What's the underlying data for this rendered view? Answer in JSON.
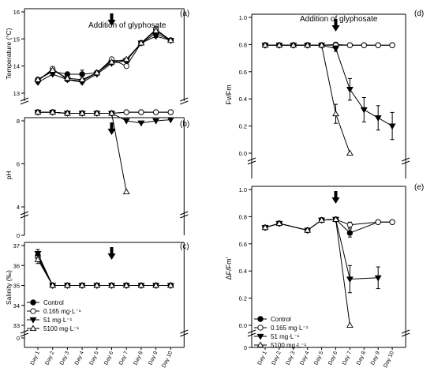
{
  "figure": {
    "annotation": "Addition of glyphosate"
  },
  "legend": [
    {
      "name": "Control",
      "marker": "circle-filled"
    },
    {
      "name": "0.165 mg·L⁻¹",
      "marker": "circle-open"
    },
    {
      "name": "51 mg·L⁻¹",
      "marker": "tri-down-filled"
    },
    {
      "name": "5100 mg·L⁻¹",
      "marker": "tri-up-open"
    }
  ],
  "chart_data": [
    {
      "panel": "(a)",
      "type": "line",
      "ylabel": "Temperature (°C)",
      "ylim": [
        13,
        16
      ],
      "yticks": [
        13,
        14,
        15,
        16
      ],
      "categories": [
        "Day 1",
        "Day 2",
        "Day 3",
        "Day 4",
        "Day 5",
        "Day 6",
        "Day 7",
        "Day 8",
        "Day 9",
        "Day 10"
      ],
      "arrow_at": "Day 6",
      "annotation_text": "Addition of glyphosate",
      "grid": false,
      "series": [
        {
          "name": "Control",
          "values": [
            13.5,
            13.8,
            13.7,
            13.7,
            13.75,
            14.2,
            14.2,
            14.85,
            15.2,
            14.95
          ],
          "err": [
            0.05,
            0.05,
            0.05,
            0.15,
            0.05,
            0.1,
            0.05,
            0.05,
            0.1,
            0.05
          ]
        },
        {
          "name": "0.165 mg·L⁻¹",
          "values": [
            13.45,
            13.9,
            13.5,
            13.45,
            13.75,
            14.25,
            14.0,
            14.85,
            15.35,
            14.95
          ],
          "err": [
            0.05,
            0.05,
            0.05,
            0.05,
            0.05,
            0.05,
            0.05,
            0.05,
            0.1,
            0.05
          ]
        },
        {
          "name": "51 mg·L⁻¹",
          "values": [
            13.4,
            13.7,
            13.5,
            13.4,
            13.7,
            14.1,
            14.2,
            14.85,
            15.1,
            14.95
          ],
          "err": [
            0.05,
            0.05,
            0.05,
            0.05,
            0.05,
            0.05,
            0.05,
            0.05,
            0.05,
            0.05
          ]
        },
        {
          "name": "5100 mg·L⁻¹",
          "values": [
            13.5,
            13.85,
            13.55,
            13.5,
            13.75,
            14.15,
            14.25,
            14.85,
            15.3,
            14.95
          ],
          "err": [
            0.05,
            0.05,
            0.05,
            0.05,
            0.05,
            0.05,
            0.05,
            0.05,
            0.05,
            0.05
          ]
        }
      ]
    },
    {
      "panel": "(b)",
      "type": "line",
      "ylabel": "pH",
      "ylim": [
        4,
        8
      ],
      "yticks": [
        4,
        6,
        8
      ],
      "bottom_tick": 0,
      "categories": [
        "Day 1",
        "Day 2",
        "Day 3",
        "Day 4",
        "Day 5",
        "Day 6",
        "Day 7",
        "Day 8",
        "Day 9",
        "Day 10"
      ],
      "arrow_at": "Day 6",
      "grid": false,
      "series": [
        {
          "name": "Control",
          "values": [
            8.4,
            8.4,
            8.35,
            8.35,
            8.35,
            8.35,
            8.4,
            8.4,
            8.4,
            8.4
          ]
        },
        {
          "name": "0.165 mg·L⁻¹",
          "values": [
            8.4,
            8.4,
            8.35,
            8.35,
            8.35,
            8.35,
            8.4,
            8.4,
            8.4,
            8.4
          ]
        },
        {
          "name": "51 mg·L⁻¹",
          "values": [
            8.4,
            8.4,
            8.35,
            8.35,
            8.35,
            8.35,
            8.0,
            7.9,
            8.0,
            8.05
          ]
        },
        {
          "name": "5100 mg·L⁻¹",
          "values": [
            8.4,
            8.4,
            8.35,
            8.35,
            8.35,
            8.35,
            4.7,
            null,
            null,
            null
          ]
        }
      ]
    },
    {
      "panel": "(c)",
      "type": "line",
      "ylabel": "Salinity (‰)",
      "ylim": [
        33,
        37
      ],
      "yticks": [
        33,
        34,
        35,
        36,
        37
      ],
      "bottom_tick": 0,
      "categories": [
        "Day 1",
        "Day 2",
        "Day 3",
        "Day 4",
        "Day 5",
        "Day 6",
        "Day 7",
        "Day 8",
        "Day 9",
        "Day 10"
      ],
      "arrow_at": "Day 6",
      "grid": false,
      "series": [
        {
          "name": "Control",
          "values": [
            36.5,
            35,
            35,
            35,
            35,
            35,
            35,
            35,
            35,
            35
          ],
          "err": [
            0.3,
            0,
            0,
            0,
            0,
            0,
            0,
            0,
            0,
            0
          ]
        },
        {
          "name": "0.165 mg·L⁻¹",
          "values": [
            36.4,
            35,
            35,
            35,
            35,
            35,
            35,
            35,
            35,
            35
          ],
          "err": [
            0.2,
            0,
            0,
            0,
            0,
            0,
            0,
            0,
            0,
            0
          ]
        },
        {
          "name": "51 mg·L⁻¹",
          "values": [
            36.6,
            35,
            35,
            35,
            35,
            35,
            35,
            35,
            35,
            35
          ],
          "err": [
            0.2,
            0,
            0,
            0,
            0,
            0,
            0,
            0,
            0,
            0
          ]
        },
        {
          "name": "5100 mg·L⁻¹",
          "values": [
            36.3,
            35,
            35,
            35,
            35,
            35,
            35,
            35,
            35,
            35
          ],
          "err": [
            0.2,
            0,
            0,
            0,
            0,
            0,
            0,
            0,
            0,
            0
          ]
        }
      ]
    },
    {
      "panel": "(d)",
      "type": "line",
      "ylabel": "Fv/Fm",
      "ylim": [
        0,
        1.0
      ],
      "yticks": [
        0.0,
        0.2,
        0.4,
        0.6,
        0.8,
        1.0
      ],
      "categories": [
        "Day 1",
        "Day 2",
        "Day 3",
        "Day 4",
        "Day 5",
        "Day 6",
        "Day 7",
        "Day 8",
        "Day 9",
        "Day 10"
      ],
      "arrow_at": "Day 6",
      "annotation_text": "Addition of glyphosate",
      "grid": false,
      "series": [
        {
          "name": "Control",
          "values": [
            0.795,
            0.795,
            0.795,
            0.795,
            0.795,
            0.8,
            0.795,
            0.795,
            0.795,
            0.795
          ],
          "err": [
            0,
            0,
            0,
            0,
            0,
            0.01,
            0,
            0,
            0,
            0
          ]
        },
        {
          "name": "0.165 mg·L⁻¹",
          "values": [
            0.795,
            0.795,
            0.795,
            0.795,
            0.795,
            0.795,
            0.795,
            0.795,
            0.795,
            0.795
          ],
          "err": [
            0,
            0,
            0,
            0,
            0,
            0,
            0,
            0,
            0,
            0
          ]
        },
        {
          "name": "51 mg·L⁻¹",
          "values": [
            0.795,
            0.795,
            0.795,
            0.795,
            0.795,
            0.77,
            0.47,
            0.32,
            0.26,
            0.2
          ],
          "err": [
            0,
            0,
            0,
            0,
            0,
            0.02,
            0.08,
            0.09,
            0.09,
            0.1
          ]
        },
        {
          "name": "5100 mg·L⁻¹",
          "values": [
            0.795,
            0.795,
            0.795,
            0.795,
            0.795,
            0.29,
            0.0,
            null,
            null,
            null
          ],
          "err": [
            0,
            0,
            0,
            0,
            0,
            0.07,
            0,
            0,
            0,
            0
          ]
        }
      ]
    },
    {
      "panel": "(e)",
      "type": "line",
      "ylabel": "ΔF/Fm'",
      "ylim": [
        0,
        1.0
      ],
      "yticks": [
        0.0,
        0.2,
        0.4,
        0.6,
        0.8,
        1.0
      ],
      "bottom_tick": 0,
      "categories": [
        "Day 1",
        "Day 2",
        "Day 3",
        "Day 4",
        "Day 5",
        "Day 6",
        "Day 7",
        "Day 8",
        "Day 9",
        "Day 10"
      ],
      "arrow_at": "Day 6",
      "grid": false,
      "series": [
        {
          "name": "Control",
          "values": [
            0.72,
            0.75,
            null,
            0.7,
            0.775,
            0.78,
            0.68,
            null,
            0.76,
            0.76
          ],
          "err": [
            0,
            0,
            0,
            0,
            0,
            0,
            0.03,
            0,
            0,
            0
          ]
        },
        {
          "name": "0.165 mg·L⁻¹",
          "values": [
            0.72,
            0.75,
            null,
            0.7,
            0.775,
            0.78,
            0.74,
            null,
            0.76,
            0.76
          ],
          "err": [
            0,
            0,
            0,
            0,
            0,
            0,
            0.02,
            0,
            0,
            0
          ]
        },
        {
          "name": "51 mg·L⁻¹",
          "values": [
            0.72,
            0.75,
            null,
            0.7,
            0.775,
            0.78,
            0.34,
            null,
            0.35,
            null
          ],
          "err": [
            0,
            0,
            0,
            0,
            0,
            0,
            0.1,
            0,
            0.08,
            0
          ]
        },
        {
          "name": "5100 mg·L⁻¹",
          "values": [
            0.72,
            0.75,
            null,
            0.7,
            0.775,
            0.78,
            0.0,
            null,
            null,
            null
          ],
          "err": [
            0,
            0,
            0,
            0,
            0,
            0,
            0,
            0,
            0,
            0
          ]
        }
      ]
    }
  ]
}
